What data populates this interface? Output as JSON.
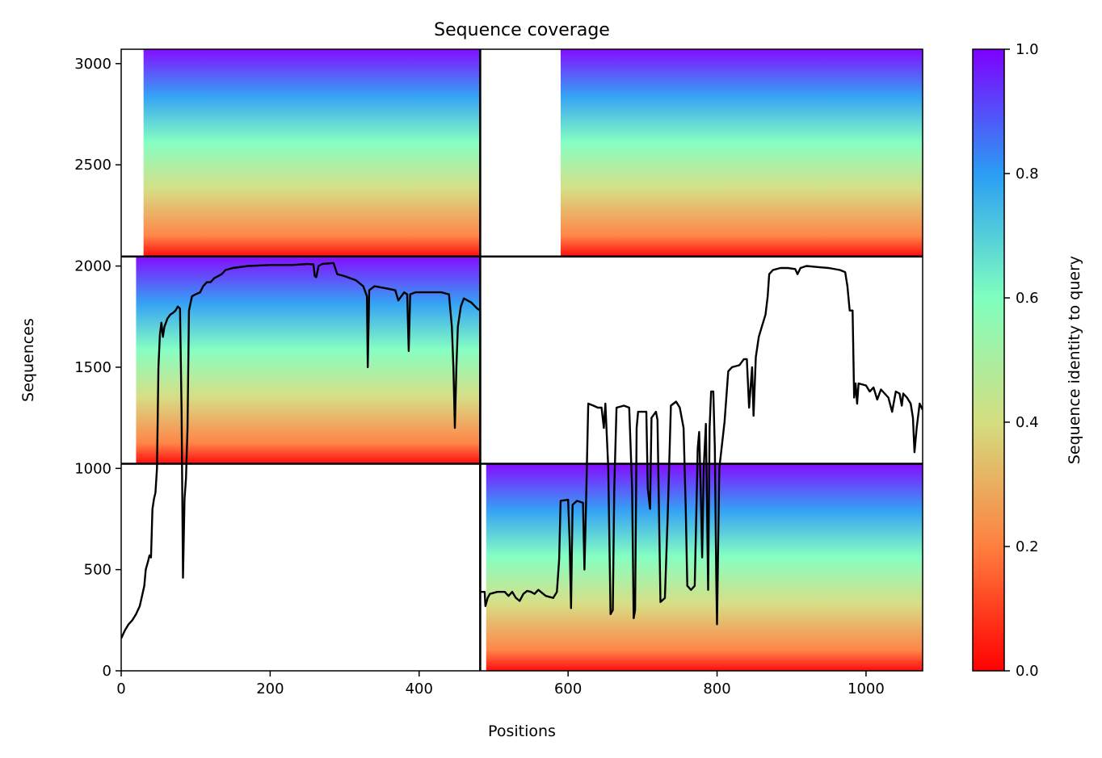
{
  "chart_data": {
    "type": "heatmap",
    "title": "Sequence coverage",
    "xlabel": "Positions",
    "ylabel": "Sequences",
    "xlim": [
      0,
      1076
    ],
    "ylim": [
      0,
      3071
    ],
    "xticks": [
      0,
      200,
      400,
      600,
      800,
      1000
    ],
    "yticks": [
      0,
      500,
      1000,
      1500,
      2000,
      2500,
      3000
    ],
    "colorbar": {
      "label": "Sequence identity to query",
      "range": [
        0.0,
        1.0
      ],
      "ticks": [
        "0.0",
        "0.2",
        "0.4",
        "0.6",
        "0.8",
        "1.0"
      ],
      "colormap": "rainbow_r",
      "colors": [
        "#ff0000",
        "#ff7f3f",
        "#d4dd80",
        "#7fffbf",
        "#2a9df4",
        "#7f00ff"
      ]
    },
    "blocks": [
      {
        "x": [
          0,
          482
        ],
        "y": [
          2047,
          3071
        ],
        "coverage_start_x": 30
      },
      {
        "x": [
          482,
          1076
        ],
        "y": [
          2047,
          3071
        ],
        "coverage_start_x": 590
      },
      {
        "x": [
          0,
          482
        ],
        "y": [
          1023,
          2047
        ],
        "coverage_start_x": 20
      },
      {
        "x": [
          482,
          1076
        ],
        "y": [
          0,
          1023
        ],
        "coverage_start_x": 490
      }
    ],
    "dividers": {
      "x": [
        482
      ],
      "y": [
        1023,
        2047
      ]
    },
    "coverage_line": {
      "color": "#000000",
      "points": [
        [
          0,
          160
        ],
        [
          5,
          200
        ],
        [
          10,
          230
        ],
        [
          15,
          250
        ],
        [
          20,
          280
        ],
        [
          25,
          320
        ],
        [
          28,
          370
        ],
        [
          31,
          420
        ],
        [
          33,
          500
        ],
        [
          36,
          540
        ],
        [
          38,
          570
        ],
        [
          40,
          560
        ],
        [
          42,
          800
        ],
        [
          44,
          850
        ],
        [
          46,
          880
        ],
        [
          48,
          1000
        ],
        [
          50,
          1500
        ],
        [
          52,
          1660
        ],
        [
          54,
          1720
        ],
        [
          56,
          1650
        ],
        [
          58,
          1700
        ],
        [
          62,
          1740
        ],
        [
          66,
          1760
        ],
        [
          70,
          1770
        ],
        [
          73,
          1780
        ],
        [
          76,
          1800
        ],
        [
          79,
          1790
        ],
        [
          81,
          1300
        ],
        [
          83,
          460
        ],
        [
          85,
          850
        ],
        [
          87,
          950
        ],
        [
          89,
          1200
        ],
        [
          91,
          1780
        ],
        [
          95,
          1850
        ],
        [
          100,
          1860
        ],
        [
          106,
          1870
        ],
        [
          110,
          1900
        ],
        [
          115,
          1920
        ],
        [
          120,
          1920
        ],
        [
          125,
          1940
        ],
        [
          130,
          1950
        ],
        [
          135,
          1960
        ],
        [
          140,
          1980
        ],
        [
          150,
          1990
        ],
        [
          170,
          2000
        ],
        [
          200,
          2005
        ],
        [
          230,
          2005
        ],
        [
          250,
          2010
        ],
        [
          258,
          2008
        ],
        [
          260,
          1950
        ],
        [
          262,
          1945
        ],
        [
          265,
          2000
        ],
        [
          270,
          2010
        ],
        [
          285,
          2015
        ],
        [
          290,
          1960
        ],
        [
          300,
          1950
        ],
        [
          315,
          1930
        ],
        [
          325,
          1900
        ],
        [
          330,
          1850
        ],
        [
          331,
          1500
        ],
        [
          333,
          1880
        ],
        [
          340,
          1900
        ],
        [
          355,
          1890
        ],
        [
          368,
          1880
        ],
        [
          372,
          1830
        ],
        [
          376,
          1850
        ],
        [
          380,
          1870
        ],
        [
          384,
          1860
        ],
        [
          386,
          1580
        ],
        [
          388,
          1860
        ],
        [
          395,
          1870
        ],
        [
          410,
          1870
        ],
        [
          430,
          1870
        ],
        [
          440,
          1860
        ],
        [
          444,
          1700
        ],
        [
          446,
          1500
        ],
        [
          448,
          1200
        ],
        [
          450,
          1500
        ],
        [
          452,
          1700
        ],
        [
          456,
          1800
        ],
        [
          460,
          1840
        ],
        [
          470,
          1820
        ],
        [
          478,
          1790
        ],
        [
          482,
          1780
        ],
        [
          482,
          390
        ],
        [
          488,
          390
        ],
        [
          489,
          320
        ],
        [
          492,
          360
        ],
        [
          495,
          380
        ],
        [
          505,
          390
        ],
        [
          515,
          390
        ],
        [
          520,
          370
        ],
        [
          525,
          390
        ],
        [
          530,
          360
        ],
        [
          535,
          345
        ],
        [
          540,
          380
        ],
        [
          545,
          395
        ],
        [
          550,
          390
        ],
        [
          555,
          380
        ],
        [
          560,
          400
        ],
        [
          570,
          370
        ],
        [
          580,
          360
        ],
        [
          585,
          390
        ],
        [
          588,
          550
        ],
        [
          590,
          840
        ],
        [
          600,
          845
        ],
        [
          602,
          650
        ],
        [
          604,
          310
        ],
        [
          606,
          820
        ],
        [
          612,
          840
        ],
        [
          620,
          830
        ],
        [
          622,
          500
        ],
        [
          624,
          810
        ],
        [
          627,
          1320
        ],
        [
          634,
          1310
        ],
        [
          640,
          1300
        ],
        [
          645,
          1300
        ],
        [
          648,
          1200
        ],
        [
          650,
          1320
        ],
        [
          654,
          1000
        ],
        [
          657,
          280
        ],
        [
          660,
          300
        ],
        [
          662,
          900
        ],
        [
          665,
          1300
        ],
        [
          675,
          1310
        ],
        [
          682,
          1300
        ],
        [
          686,
          900
        ],
        [
          688,
          260
        ],
        [
          690,
          300
        ],
        [
          692,
          1200
        ],
        [
          694,
          1280
        ],
        [
          705,
          1280
        ],
        [
          707,
          900
        ],
        [
          710,
          800
        ],
        [
          712,
          1250
        ],
        [
          718,
          1280
        ],
        [
          720,
          1240
        ],
        [
          724,
          340
        ],
        [
          730,
          360
        ],
        [
          734,
          800
        ],
        [
          738,
          1310
        ],
        [
          745,
          1330
        ],
        [
          750,
          1300
        ],
        [
          755,
          1200
        ],
        [
          758,
          800
        ],
        [
          760,
          420
        ],
        [
          765,
          400
        ],
        [
          770,
          420
        ],
        [
          774,
          1100
        ],
        [
          776,
          1180
        ],
        [
          778,
          900
        ],
        [
          780,
          560
        ],
        [
          782,
          1000
        ],
        [
          785,
          1220
        ],
        [
          788,
          400
        ],
        [
          790,
          1200
        ],
        [
          792,
          1380
        ],
        [
          795,
          1380
        ],
        [
          797,
          1100
        ],
        [
          799,
          450
        ],
        [
          800,
          230
        ],
        [
          803,
          1000
        ],
        [
          810,
          1230
        ],
        [
          815,
          1480
        ],
        [
          820,
          1500
        ],
        [
          830,
          1510
        ],
        [
          836,
          1540
        ],
        [
          840,
          1540
        ],
        [
          843,
          1300
        ],
        [
          845,
          1400
        ],
        [
          847,
          1500
        ],
        [
          849,
          1260
        ],
        [
          852,
          1550
        ],
        [
          856,
          1650
        ],
        [
          860,
          1700
        ],
        [
          865,
          1760
        ],
        [
          868,
          1850
        ],
        [
          870,
          1960
        ],
        [
          875,
          1980
        ],
        [
          885,
          1990
        ],
        [
          895,
          1990
        ],
        [
          905,
          1985
        ],
        [
          908,
          1960
        ],
        [
          912,
          1990
        ],
        [
          920,
          2000
        ],
        [
          935,
          1995
        ],
        [
          950,
          1990
        ],
        [
          965,
          1980
        ],
        [
          972,
          1970
        ],
        [
          975,
          1900
        ],
        [
          978,
          1780
        ],
        [
          982,
          1780
        ],
        [
          984,
          1350
        ],
        [
          986,
          1420
        ],
        [
          988,
          1320
        ],
        [
          990,
          1420
        ],
        [
          1000,
          1410
        ],
        [
          1005,
          1380
        ],
        [
          1010,
          1400
        ],
        [
          1015,
          1340
        ],
        [
          1020,
          1390
        ],
        [
          1025,
          1370
        ],
        [
          1030,
          1350
        ],
        [
          1035,
          1280
        ],
        [
          1040,
          1380
        ],
        [
          1045,
          1370
        ],
        [
          1048,
          1310
        ],
        [
          1050,
          1370
        ],
        [
          1055,
          1350
        ],
        [
          1060,
          1320
        ],
        [
          1063,
          1250
        ],
        [
          1065,
          1080
        ],
        [
          1068,
          1200
        ],
        [
          1072,
          1320
        ],
        [
          1076,
          1290
        ]
      ]
    }
  }
}
